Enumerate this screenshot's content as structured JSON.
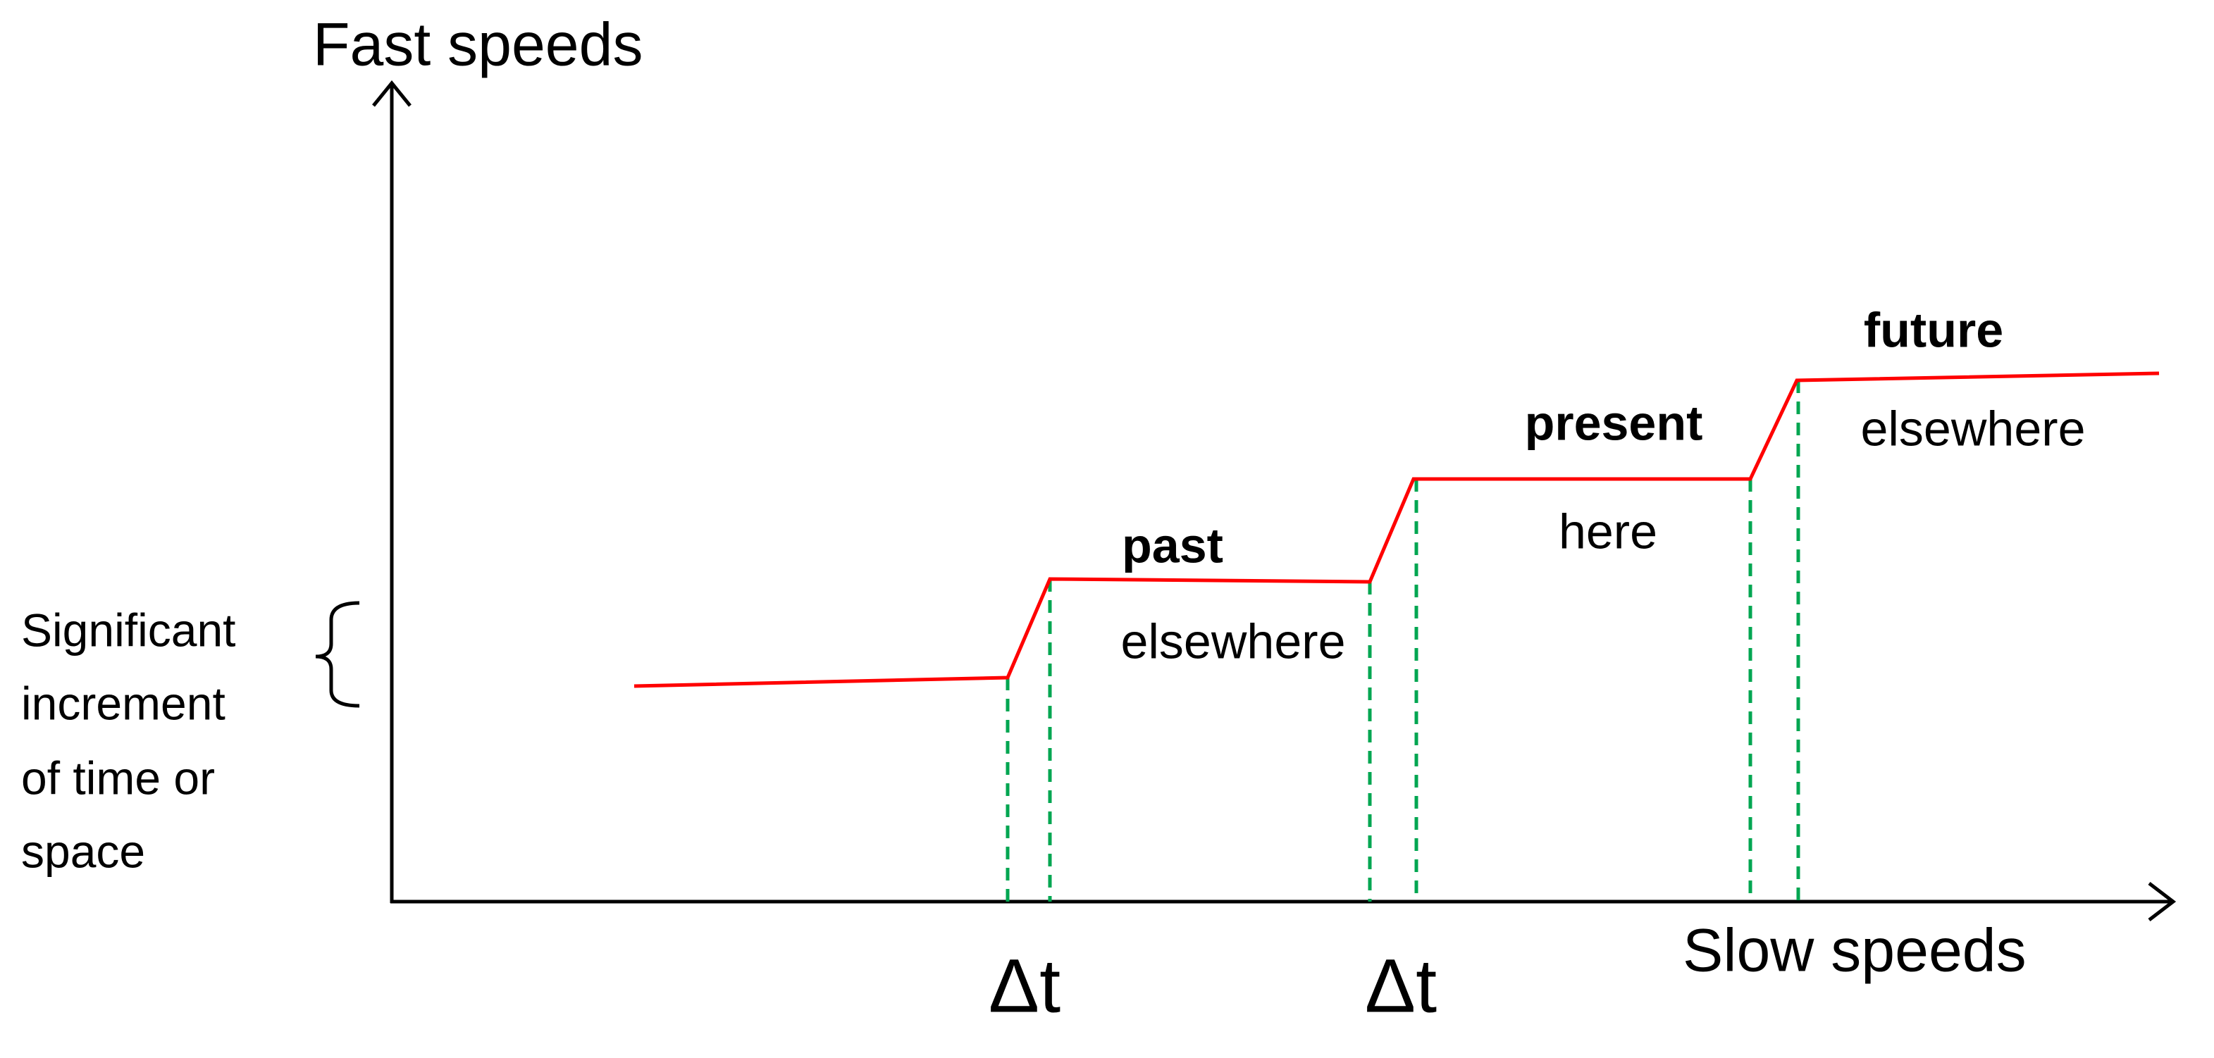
{
  "y_axis_label": "Fast speeds",
  "x_axis_label": "Slow speeds",
  "side_note": [
    "Significant",
    "increment",
    "of time or",
    "space"
  ],
  "steps": [
    {
      "title": "past",
      "label": "elsewhere"
    },
    {
      "title": "present",
      "label": "here"
    },
    {
      "title": "future",
      "label": "elsewhere"
    }
  ],
  "intervals": [
    "Δt",
    "Δt"
  ]
}
